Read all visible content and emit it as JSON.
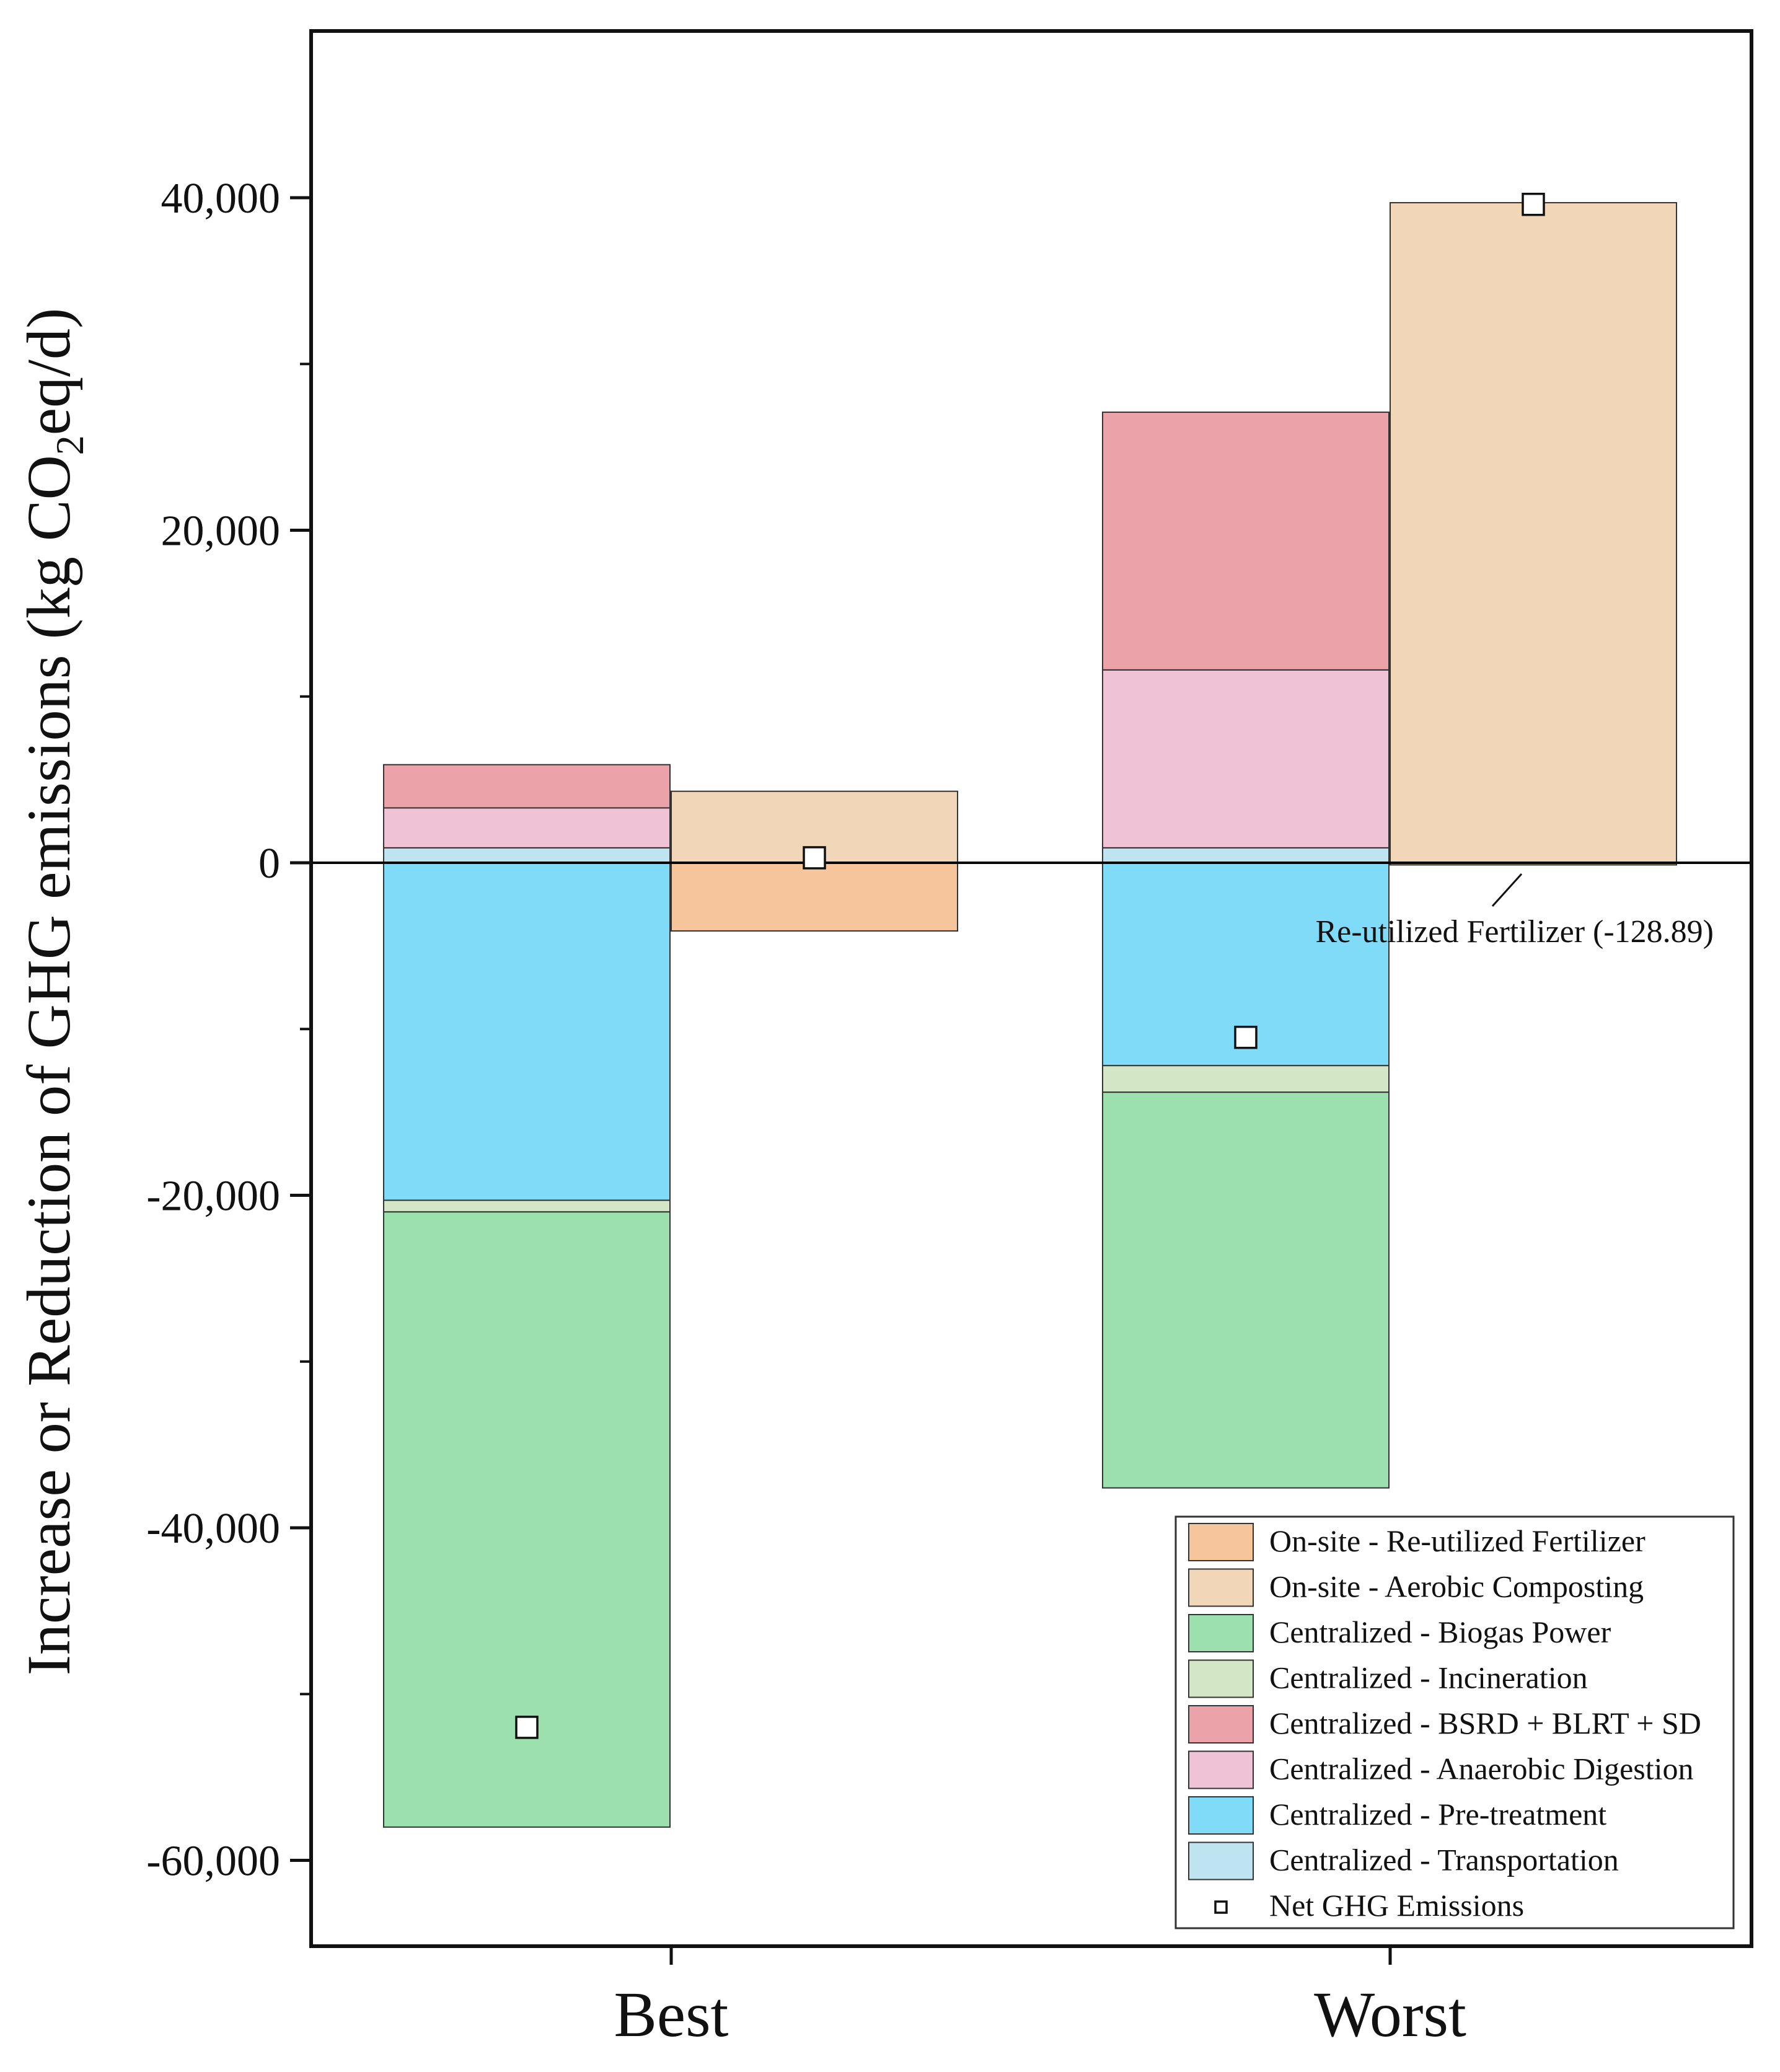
{
  "chart_data": {
    "type": "bar",
    "subtype": "stacked-waterfall",
    "title": "",
    "xlabel": "",
    "ylabel": {
      "prefix": "Increase or Reduction of GHG emissions (kg CO",
      "subscript": "2",
      "suffix": "eq/d)"
    },
    "ylim": [
      -65000,
      50000
    ],
    "yticks": [
      -60000,
      -40000,
      -20000,
      0,
      20000,
      40000
    ],
    "ytick_labels": [
      "-60,000",
      "-40,000",
      "-20,000",
      "0",
      "20,000",
      "40,000"
    ],
    "grid": false,
    "legend_position": "bottom-right",
    "categories": [
      "Best",
      "Worst"
    ],
    "series": [
      {
        "key": "onsite_fert",
        "name": "On-site - Re-utilized Fertilizer",
        "color": "#F7C59B"
      },
      {
        "key": "onsite_comp",
        "name": "On-site - Aerobic Composting",
        "color": "#F1D7B7"
      },
      {
        "key": "biogas",
        "name": "Centralized - Biogas Power",
        "color": "#9BE0AD"
      },
      {
        "key": "incin",
        "name": "Centralized - Incineration",
        "color": "#D3E6C6"
      },
      {
        "key": "bsrd",
        "name": "Centralized - BSRD + BLRT + SD",
        "color": "#EBA3A9"
      },
      {
        "key": "ad",
        "name": "Centralized - Anaerobic Digestion",
        "color": "#F0C2D5"
      },
      {
        "key": "pretreat",
        "name": "Centralized - Pre-treatment",
        "color": "#7FDBF8"
      },
      {
        "key": "transport",
        "name": "Centralized - Transportation",
        "color": "#BEE4F1"
      }
    ],
    "net_label": "Net GHG Emissions",
    "bars": [
      {
        "category": "Best",
        "system": "Centralized",
        "segments": [
          {
            "series": "transport",
            "from": 0,
            "to": 900
          },
          {
            "series": "ad",
            "from": 900,
            "to": 3300
          },
          {
            "series": "bsrd",
            "from": 3300,
            "to": 5900
          },
          {
            "series": "pretreat",
            "from": 0,
            "to": -20300
          },
          {
            "series": "incin",
            "from": -20300,
            "to": -21000
          },
          {
            "series": "biogas",
            "from": -21000,
            "to": -58000
          }
        ],
        "net": -52000
      },
      {
        "category": "Best",
        "system": "On-site",
        "segments": [
          {
            "series": "onsite_comp",
            "from": 0,
            "to": 4300
          },
          {
            "series": "onsite_fert",
            "from": 0,
            "to": -4100
          }
        ],
        "net": 300
      },
      {
        "category": "Worst",
        "system": "Centralized",
        "segments": [
          {
            "series": "transport",
            "from": 0,
            "to": 900
          },
          {
            "series": "ad",
            "from": 900,
            "to": 11600
          },
          {
            "series": "bsrd",
            "from": 11600,
            "to": 27100
          },
          {
            "series": "pretreat",
            "from": 0,
            "to": -12200
          },
          {
            "series": "incin",
            "from": -12200,
            "to": -13800
          },
          {
            "series": "biogas",
            "from": -13800,
            "to": -37600
          }
        ],
        "net": -10500
      },
      {
        "category": "Worst",
        "system": "On-site",
        "segments": [
          {
            "series": "onsite_comp",
            "from": 0,
            "to": 39700
          },
          {
            "series": "onsite_fert",
            "from": 0,
            "to": -128.89
          }
        ],
        "net": 39600
      }
    ],
    "annotations": [
      {
        "text": "Re-utilized Fertilizer (-128.89)",
        "category": "Worst",
        "value": -128.89
      }
    ]
  }
}
